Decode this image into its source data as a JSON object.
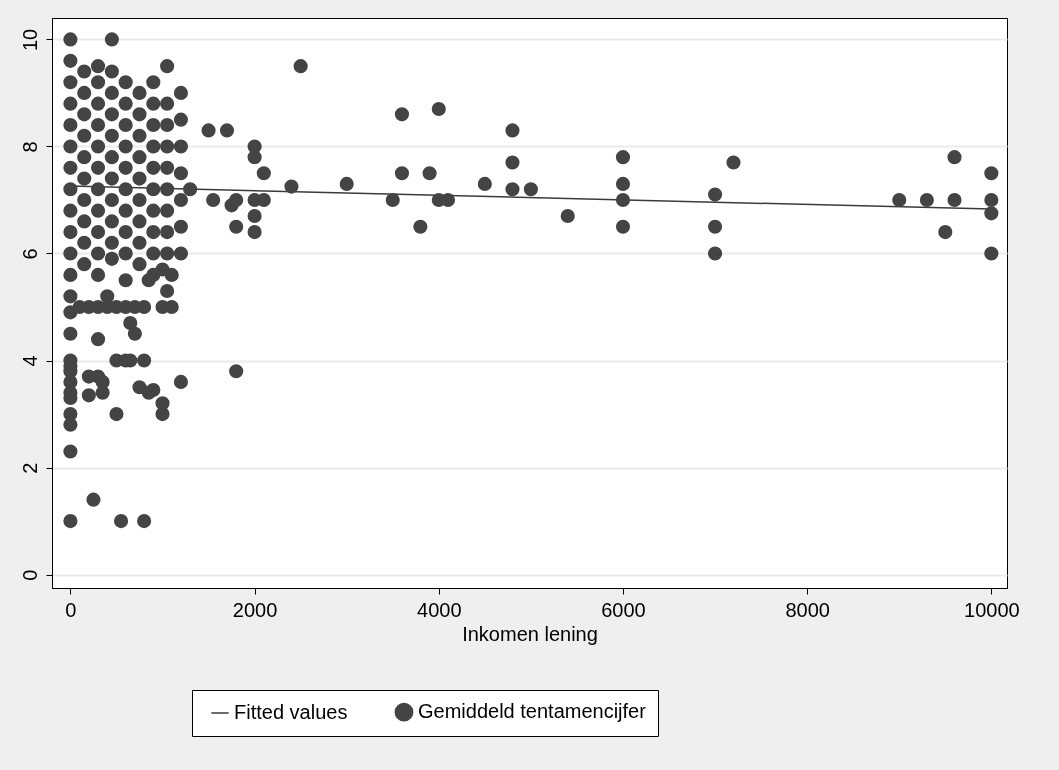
{
  "chart_data": {
    "type": "scatter",
    "xlabel": "Inkomen lening",
    "xlim": [
      -200,
      10170
    ],
    "xticks": [
      0,
      {
        "value": 2000,
        "label": "2000"
      },
      {
        "value": 4000,
        "label": "4000"
      },
      {
        "value": 6000,
        "label": "6000"
      },
      {
        "value": 8000,
        "label": "8000"
      },
      {
        "value": 10000,
        "label": "10000"
      }
    ],
    "ylim": [
      -0.25,
      10.4
    ],
    "yticks": [
      0,
      2,
      4,
      6,
      8,
      10
    ],
    "grid": "y",
    "legend": "bottom",
    "series": [
      {
        "name": "Fitted values",
        "type": "line",
        "line_style": "solid",
        "color": "#3a3a3a",
        "x": [
          0,
          10000
        ],
        "values": [
          7.26,
          6.83
        ]
      },
      {
        "name": "Gemiddeld tentamencijfer",
        "marker": "circle",
        "color": "#444444",
        "x": [
          0,
          0,
          0,
          0,
          0,
          0,
          0,
          0,
          0,
          0,
          0,
          0,
          150,
          150,
          150,
          150,
          150,
          150,
          150,
          150,
          150,
          150,
          300,
          300,
          300,
          300,
          300,
          300,
          300,
          300,
          300,
          300,
          300,
          450,
          450,
          450,
          450,
          450,
          450,
          450,
          450,
          450,
          450,
          450,
          600,
          600,
          600,
          600,
          600,
          600,
          600,
          600,
          600,
          600,
          750,
          750,
          750,
          750,
          750,
          750,
          750,
          750,
          750,
          900,
          900,
          900,
          900,
          900,
          900,
          900,
          900,
          900,
          900,
          1050,
          1050,
          1050,
          1050,
          1050,
          1050,
          1050,
          1050,
          1050,
          1050,
          1200,
          1200,
          1200,
          1200,
          1200,
          1200,
          1200,
          0,
          0,
          0,
          0,
          0,
          0,
          0,
          0,
          0,
          0,
          0,
          0,
          0,
          100,
          200,
          300,
          400,
          500,
          600,
          700,
          800,
          1000,
          1100,
          250,
          550,
          800,
          200,
          200,
          300,
          350,
          350,
          500,
          500,
          600,
          650,
          750,
          800,
          850,
          900,
          1000,
          1000,
          1200,
          300,
          700,
          650,
          400,
          1800,
          850,
          1000,
          1100,
          2500,
          1500,
          1700,
          2000,
          2000,
          2100,
          1300,
          1550,
          1750,
          1800,
          2000,
          2000,
          1800,
          2000,
          2100,
          2400,
          3000,
          3500,
          3600,
          3600,
          3800,
          3900,
          4000,
          4000,
          4100,
          4500,
          4800,
          4800,
          4800,
          5000,
          5400,
          6000,
          6000,
          6000,
          6000,
          7000,
          7000,
          7000,
          7200,
          9000,
          9300,
          9500,
          9600,
          9600,
          10000,
          10000,
          10000,
          10000
        ],
        "values": [
          5.2,
          5.6,
          6.0,
          6.4,
          6.8,
          7.2,
          7.6,
          8.0,
          8.4,
          8.8,
          9.2,
          9.6,
          5.8,
          6.2,
          6.6,
          7.0,
          7.4,
          7.8,
          8.2,
          8.6,
          9.0,
          9.4,
          5.6,
          6.0,
          6.4,
          6.8,
          7.2,
          7.6,
          8.0,
          8.4,
          8.8,
          9.2,
          9.5,
          5.9,
          6.2,
          6.6,
          7.0,
          7.4,
          7.8,
          8.2,
          8.6,
          9.0,
          9.4,
          10.0,
          5.5,
          6.0,
          6.4,
          6.8,
          7.2,
          7.6,
          8.0,
          8.4,
          8.8,
          9.2,
          5.8,
          6.2,
          6.6,
          7.0,
          7.4,
          7.8,
          8.2,
          8.6,
          9.0,
          5.6,
          6.0,
          6.4,
          6.8,
          7.2,
          7.6,
          8.0,
          8.4,
          8.8,
          9.2,
          5.3,
          6.0,
          6.4,
          6.8,
          7.2,
          7.6,
          8.0,
          8.4,
          8.8,
          9.5,
          6.0,
          6.5,
          7.0,
          7.5,
          8.0,
          8.5,
          9.0,
          10.0,
          4.9,
          4.5,
          4.0,
          3.9,
          3.8,
          3.6,
          3.4,
          3.3,
          3.0,
          2.8,
          2.3,
          1.0,
          5.0,
          5.0,
          5.0,
          5.0,
          5.0,
          5.0,
          5.0,
          5.0,
          5.0,
          5.0,
          1.4,
          1.0,
          1.0,
          3.7,
          3.35,
          3.7,
          3.6,
          3.4,
          3.0,
          4.0,
          4.0,
          4.0,
          3.5,
          4.0,
          3.4,
          3.45,
          3.2,
          3.0,
          3.6,
          4.4,
          4.5,
          4.7,
          5.2,
          3.8,
          5.5,
          5.7,
          5.6,
          9.5,
          8.3,
          8.3,
          8.0,
          7.8,
          7.5,
          7.2,
          7.0,
          6.9,
          7.0,
          7.0,
          6.7,
          6.5,
          6.4,
          7.0,
          7.25,
          7.3,
          7.0,
          8.6,
          7.5,
          6.5,
          7.5,
          8.7,
          7.0,
          7.0,
          7.3,
          8.3,
          7.7,
          7.2,
          7.2,
          6.7,
          7.8,
          7.3,
          7.0,
          6.5,
          7.1,
          6.5,
          6.0,
          7.7,
          7.0,
          7.0,
          6.4,
          7.8,
          7.0,
          7.5,
          7.0,
          6.75,
          6.0
        ]
      }
    ]
  }
}
